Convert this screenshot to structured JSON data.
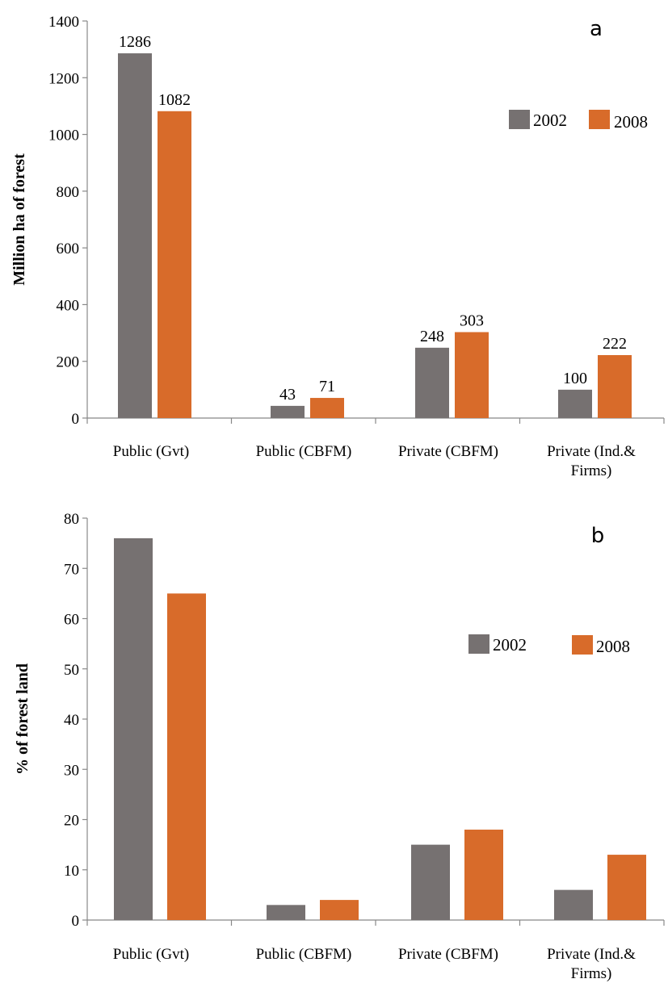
{
  "chart_data": [
    {
      "type": "bar",
      "panel_label": "a",
      "ylabel": "Million ha of forest",
      "ylim": [
        0,
        1400
      ],
      "yticks": [
        0,
        200,
        400,
        600,
        800,
        1000,
        1200,
        1400
      ],
      "categories": [
        "Public (Gvt)",
        "Public (CBFM)",
        "Private (CBFM)",
        "Private (Ind.& Firms)"
      ],
      "category_lines": [
        [
          "Public (Gvt)"
        ],
        [
          "Public (CBFM)"
        ],
        [
          "Private (CBFM)"
        ],
        [
          "Private (Ind.&",
          "Firms)"
        ]
      ],
      "series": [
        {
          "name": "2002",
          "color": "#767171",
          "values": [
            1286,
            43,
            248,
            100
          ]
        },
        {
          "name": "2008",
          "color": "#D86B2A",
          "values": [
            1082,
            71,
            303,
            222
          ]
        }
      ],
      "data_labels": true,
      "legend": "right",
      "grid": false
    },
    {
      "type": "bar",
      "panel_label": "b",
      "ylabel": "% of forest land",
      "ylim": [
        0,
        80
      ],
      "yticks": [
        0,
        10,
        20,
        30,
        40,
        50,
        60,
        70,
        80
      ],
      "categories": [
        "Public (Gvt)",
        "Public (CBFM)",
        "Private (CBFM)",
        "Private (Ind.& Firms)"
      ],
      "category_lines": [
        [
          "Public (Gvt)"
        ],
        [
          "Public (CBFM)"
        ],
        [
          "Private (CBFM)"
        ],
        [
          "Private (Ind.&",
          "Firms)"
        ]
      ],
      "series": [
        {
          "name": "2002",
          "color": "#767171",
          "values": [
            76,
            3,
            15,
            6
          ]
        },
        {
          "name": "2008",
          "color": "#D86B2A",
          "values": [
            65,
            4,
            18,
            13
          ]
        }
      ],
      "data_labels": false,
      "legend": "right",
      "grid": false
    }
  ]
}
